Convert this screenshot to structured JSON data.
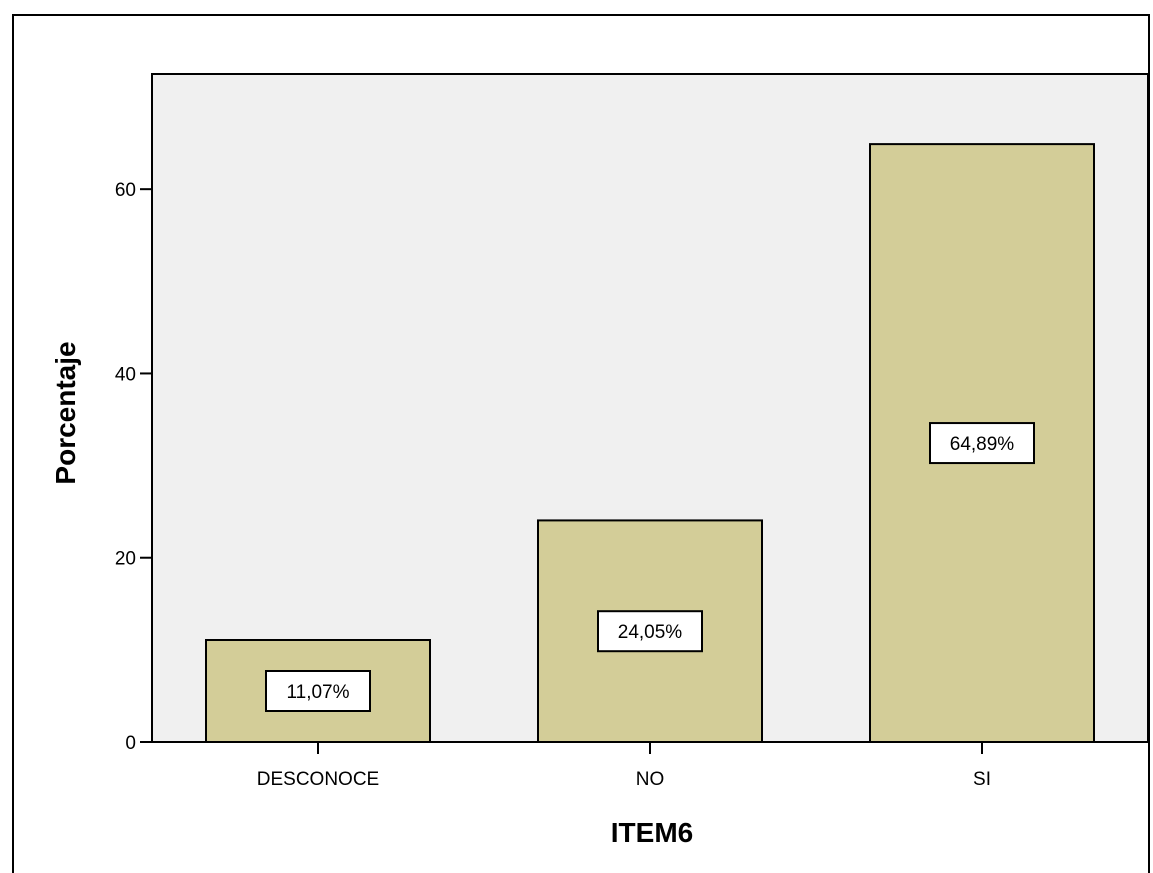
{
  "chart_data": {
    "type": "bar",
    "xlabel": "ITEM6",
    "ylabel": "Porcentaje",
    "categories": [
      "DESCONOCE",
      "NO",
      "SI"
    ],
    "values": [
      11.07,
      24.05,
      64.89
    ],
    "data_labels": [
      "11,07%",
      "24,05%",
      "64,89%"
    ],
    "yticks": [
      0,
      20,
      40,
      60
    ],
    "ylim": [
      0,
      72.5
    ],
    "grid": false,
    "colors": {
      "bar_fill": "#d3cd98",
      "plot_background": "#f0f0f0",
      "stroke": "#000000"
    }
  }
}
